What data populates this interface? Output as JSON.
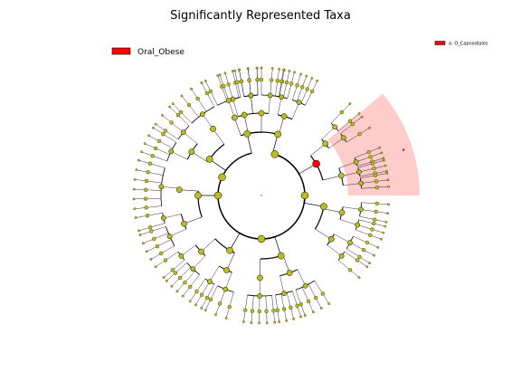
{
  "chart_data": {
    "type": "cladogram",
    "title": "Significantly Represented Taxa",
    "legend": {
      "placement": "upper-left",
      "entries": [
        {
          "name": "Oral_Obese",
          "color": "#ff0000"
        }
      ]
    },
    "highlight_legend": {
      "placement": "upper-right",
      "entries": [
        {
          "label": "a: O_Capnodiales",
          "color": "#ff0000"
        }
      ]
    },
    "highlighted_clades": [
      {
        "letter": "a",
        "name": "O_Capnodiales",
        "group": "Oral_Obese"
      }
    ],
    "node_colors": {
      "default": "#bcbc1c",
      "significant": "#ff0000",
      "highlight_shade": "#ffaaaa"
    }
  }
}
